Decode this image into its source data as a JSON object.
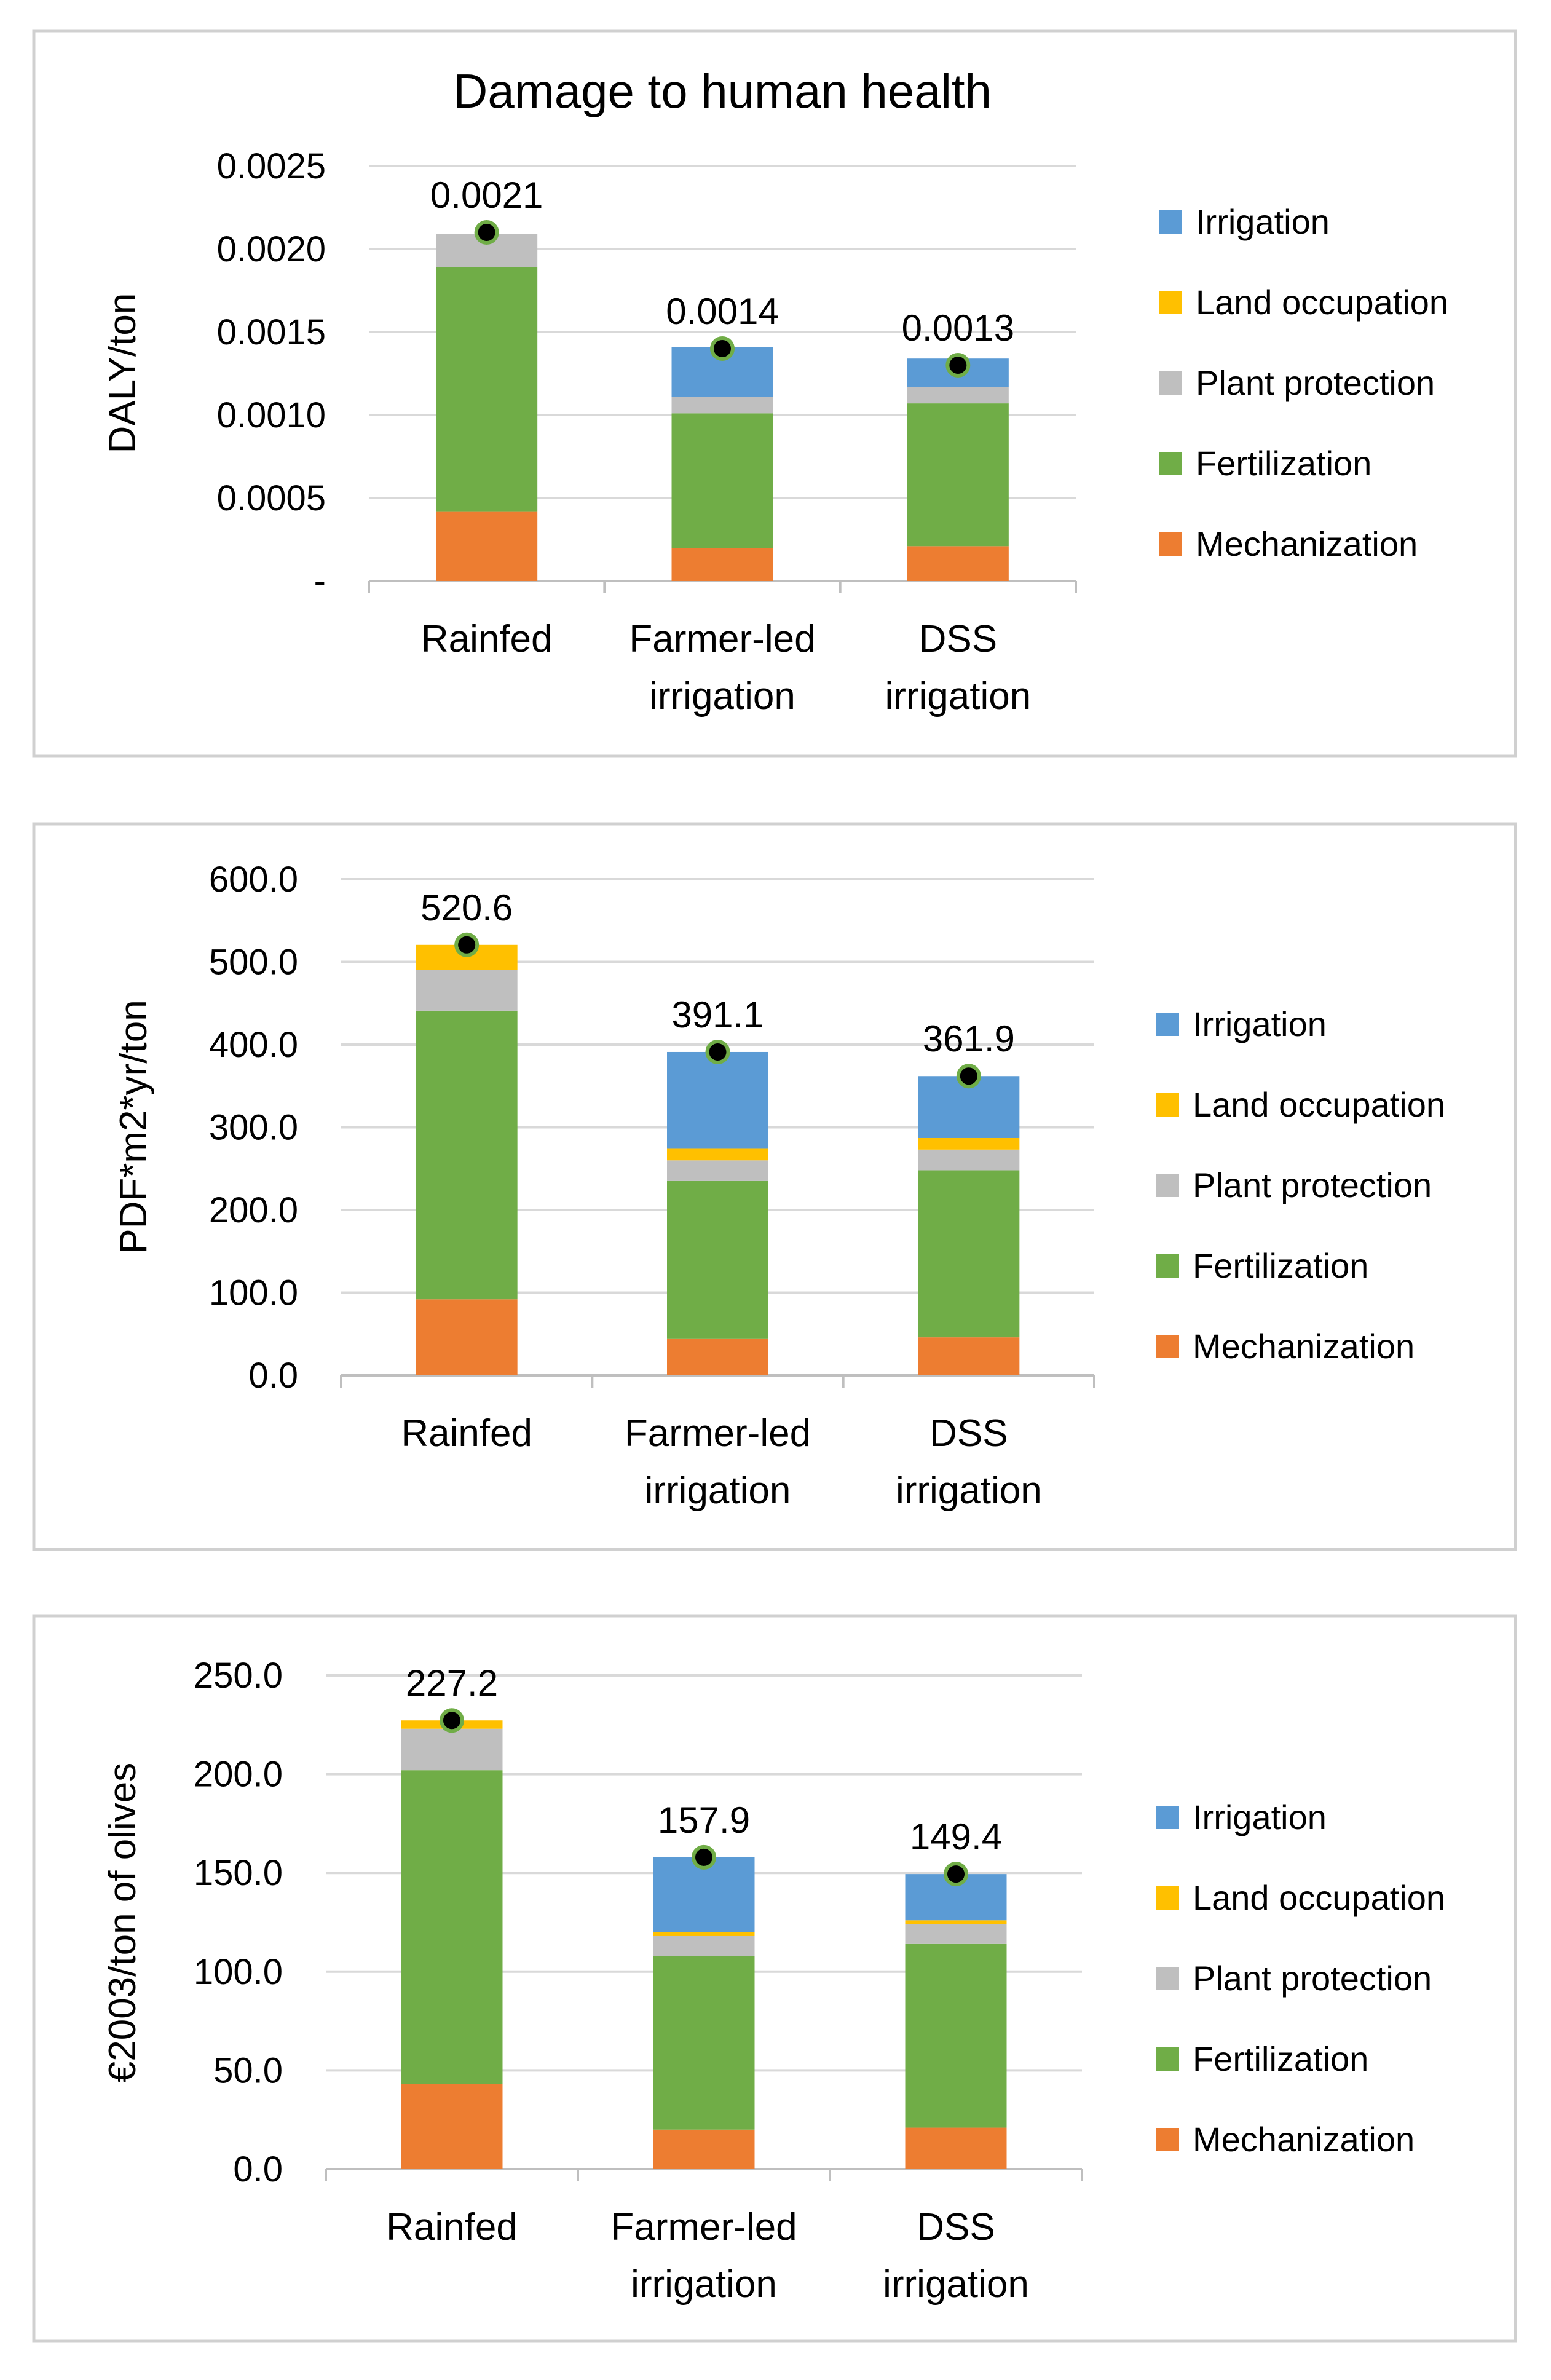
{
  "figure": {
    "series_colors": {
      "Irrigation": "#5b9bd5",
      "Land occupation": "#ffc000",
      "Plant protection": "#bfbfbf",
      "Fertilization": "#70ad47",
      "Mechanization": "#ed7d31"
    },
    "marker_fill": "#000000",
    "marker_stroke": "#70ad47"
  },
  "chart_data": [
    {
      "type": "bar",
      "stacked": true,
      "title": "Damage to human health",
      "ylabel": "DALY/ton",
      "xlabel": "",
      "categories": [
        [
          "Rainfed"
        ],
        [
          "Farmer-led",
          "irrigation"
        ],
        [
          "DSS",
          "irrigation"
        ]
      ],
      "ylim": [
        0,
        0.0025
      ],
      "yticks": [
        "-",
        "0.0005",
        "0.0010",
        "0.0015",
        "0.0020",
        "0.0025"
      ],
      "series": [
        {
          "name": "Mechanization",
          "values": [
            0.00042,
            0.0002,
            0.00021
          ]
        },
        {
          "name": "Fertilization",
          "values": [
            0.00147,
            0.00081,
            0.00086
          ]
        },
        {
          "name": "Plant protection",
          "values": [
            0.0002,
            0.0001,
            0.0001
          ]
        },
        {
          "name": "Land occupation",
          "values": [
            0.0,
            0.0,
            0.0
          ]
        },
        {
          "name": "Irrigation",
          "values": [
            0.0,
            0.0003,
            0.00017
          ]
        }
      ],
      "totals": [
        0.0021,
        0.0014,
        0.0013
      ],
      "total_labels": [
        "0.0021",
        "0.0014",
        "0.0013"
      ],
      "legend": [
        "Irrigation",
        "Land occupation",
        "Plant protection",
        "Fertilization",
        "Mechanization"
      ],
      "legend_position": "right",
      "grid": true
    },
    {
      "type": "bar",
      "stacked": true,
      "title": "",
      "ylabel": "PDF*m2*yr/ton",
      "xlabel": "",
      "categories": [
        [
          "Rainfed"
        ],
        [
          "Farmer-led",
          "irrigation"
        ],
        [
          "DSS",
          "irrigation"
        ]
      ],
      "ylim": [
        0,
        600
      ],
      "yticks": [
        "0.0",
        "100.0",
        "200.0",
        "300.0",
        "400.0",
        "500.0",
        "600.0"
      ],
      "series": [
        {
          "name": "Mechanization",
          "values": [
            92,
            44,
            46
          ]
        },
        {
          "name": "Fertilization",
          "values": [
            349,
            191,
            202
          ]
        },
        {
          "name": "Plant protection",
          "values": [
            49,
            25,
            25
          ]
        },
        {
          "name": "Land occupation",
          "values": [
            30.6,
            14,
            14
          ]
        },
        {
          "name": "Irrigation",
          "values": [
            0,
            117.1,
            74.9
          ]
        }
      ],
      "totals": [
        520.6,
        391.1,
        361.9
      ],
      "total_labels": [
        "520.6",
        "391.1",
        "361.9"
      ],
      "legend": [
        "Irrigation",
        "Land occupation",
        "Plant protection",
        "Fertilization",
        "Mechanization"
      ],
      "legend_position": "right",
      "grid": true
    },
    {
      "type": "bar",
      "stacked": true,
      "title": "",
      "ylabel": "€2003/ton of olives",
      "xlabel": "",
      "categories": [
        [
          "Rainfed"
        ],
        [
          "Farmer-led",
          "irrigation"
        ],
        [
          "DSS",
          "irrigation"
        ]
      ],
      "ylim": [
        0,
        250
      ],
      "yticks": [
        "0.0",
        "50.0",
        "100.0",
        "150.0",
        "200.0",
        "250.0"
      ],
      "series": [
        {
          "name": "Mechanization",
          "values": [
            43,
            20,
            21
          ]
        },
        {
          "name": "Fertilization",
          "values": [
            159,
            88,
            93
          ]
        },
        {
          "name": "Plant protection",
          "values": [
            21,
            10,
            10
          ]
        },
        {
          "name": "Land occupation",
          "values": [
            4.2,
            2,
            2
          ]
        },
        {
          "name": "Irrigation",
          "values": [
            0,
            37.9,
            23.4
          ]
        }
      ],
      "totals": [
        227.2,
        157.9,
        149.4
      ],
      "total_labels": [
        "227.2",
        "157.9",
        "149.4"
      ],
      "legend": [
        "Irrigation",
        "Land occupation",
        "Plant protection",
        "Fertilization",
        "Mechanization"
      ],
      "legend_position": "right",
      "grid": true
    }
  ]
}
